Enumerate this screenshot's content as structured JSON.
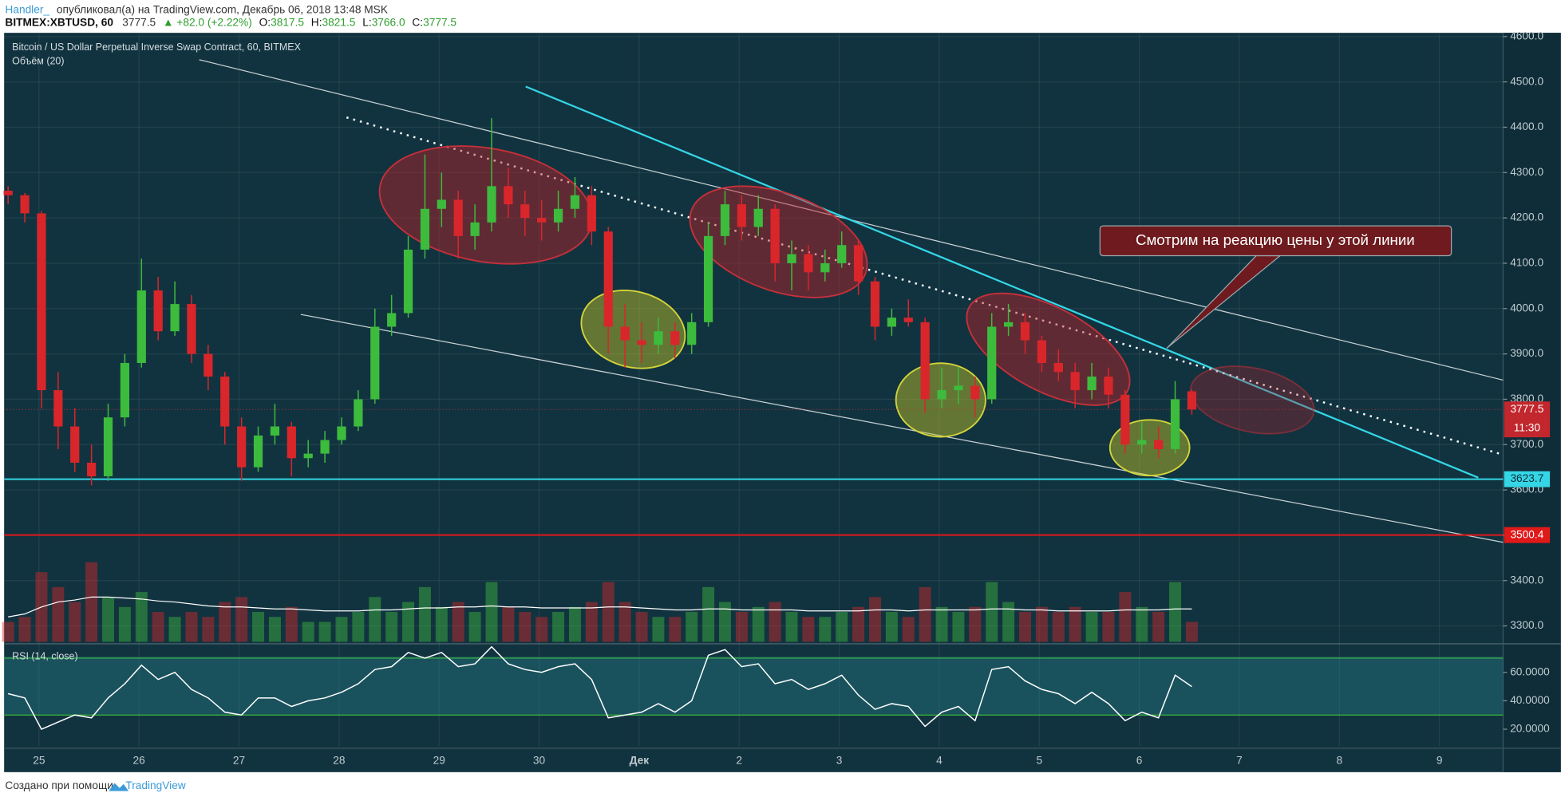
{
  "header": {
    "author": "Handler_",
    "published": "опубликовал(а) на TradingView.com, Декабрь 06, 2018 13:48 MSK",
    "symbol": "BITMEX:XBTUSD, 60",
    "last": "3777.5",
    "change": "▲ +82.0 (+2.22%)",
    "open_key": "O:",
    "open": "3817.5",
    "high_key": "H:",
    "high": "3821.5",
    "low_key": "L:",
    "low": "3766.0",
    "close_key": "C:",
    "close": "3777.5"
  },
  "footer": {
    "made_with": "Создано при помощи",
    "brand": "TradingView"
  },
  "chart_data": [
    {
      "type": "candlestick",
      "title": "Bitcoin / US Dollar Perpetual Inverse Swap Contract, 60, BITMEX",
      "subtitle": "Объём (20)",
      "up_color": "#3dbb3d",
      "down_color": "#d8262b",
      "x_labels": [
        "25",
        "26",
        "27",
        "28",
        "29",
        "30",
        "Дек",
        "2",
        "3",
        "4",
        "5",
        "6",
        "7",
        "8",
        "9"
      ],
      "ylim": [
        3265,
        4606
      ],
      "yticks": [
        {
          "value": 3300,
          "label": "3300.0"
        },
        {
          "value": 3400,
          "label": "3400.0"
        },
        {
          "value": 3500,
          "label": "3500.0"
        },
        {
          "value": 3600,
          "label": "3600.0"
        },
        {
          "value": 3700,
          "label": "3700.0"
        },
        {
          "value": 3800,
          "label": "3800.0"
        },
        {
          "value": 3900,
          "label": "3900.0"
        },
        {
          "value": 4000,
          "label": "4000.0"
        },
        {
          "value": 4100,
          "label": "4100.0"
        },
        {
          "value": 4200,
          "label": "4200.0"
        },
        {
          "value": 4300,
          "label": "4300.0"
        },
        {
          "value": 4400,
          "label": "4400.0"
        },
        {
          "value": 4500,
          "label": "4500.0"
        },
        {
          "value": 4600,
          "label": "4600.0"
        }
      ],
      "grid": true,
      "ohlc": [
        [
          4260,
          4270,
          4230,
          4250
        ],
        [
          4250,
          4255,
          4190,
          4210
        ],
        [
          4210,
          4215,
          3780,
          3820
        ],
        [
          3820,
          3860,
          3690,
          3740
        ],
        [
          3740,
          3780,
          3640,
          3660
        ],
        [
          3660,
          3700,
          3610,
          3630
        ],
        [
          3630,
          3790,
          3620,
          3760
        ],
        [
          3760,
          3900,
          3740,
          3880
        ],
        [
          3880,
          4110,
          3870,
          4040
        ],
        [
          4040,
          4070,
          3930,
          3950
        ],
        [
          3950,
          4060,
          3940,
          4010
        ],
        [
          4010,
          4030,
          3880,
          3900
        ],
        [
          3900,
          3920,
          3820,
          3850
        ],
        [
          3850,
          3860,
          3700,
          3740
        ],
        [
          3740,
          3760,
          3620,
          3650
        ],
        [
          3650,
          3740,
          3640,
          3720
        ],
        [
          3720,
          3790,
          3700,
          3740
        ],
        [
          3740,
          3750,
          3630,
          3670
        ],
        [
          3670,
          3710,
          3650,
          3680
        ],
        [
          3680,
          3730,
          3660,
          3710
        ],
        [
          3710,
          3760,
          3700,
          3740
        ],
        [
          3740,
          3820,
          3730,
          3800
        ],
        [
          3800,
          4000,
          3790,
          3960
        ],
        [
          3960,
          4030,
          3940,
          3990
        ],
        [
          3990,
          4160,
          3980,
          4130
        ],
        [
          4130,
          4340,
          4110,
          4220
        ],
        [
          4220,
          4300,
          4180,
          4240
        ],
        [
          4240,
          4260,
          4110,
          4160
        ],
        [
          4160,
          4230,
          4130,
          4190
        ],
        [
          4190,
          4420,
          4170,
          4270
        ],
        [
          4270,
          4310,
          4200,
          4230
        ],
        [
          4230,
          4260,
          4160,
          4200
        ],
        [
          4200,
          4240,
          4150,
          4190
        ],
        [
          4190,
          4260,
          4170,
          4220
        ],
        [
          4220,
          4290,
          4200,
          4250
        ],
        [
          4250,
          4270,
          4140,
          4170
        ],
        [
          4170,
          4180,
          3900,
          3960
        ],
        [
          3960,
          4010,
          3870,
          3930
        ],
        [
          3930,
          3970,
          3880,
          3920
        ],
        [
          3920,
          3980,
          3900,
          3950
        ],
        [
          3950,
          3970,
          3890,
          3920
        ],
        [
          3920,
          3990,
          3900,
          3970
        ],
        [
          3970,
          4190,
          3960,
          4160
        ],
        [
          4160,
          4260,
          4140,
          4230
        ],
        [
          4230,
          4250,
          4150,
          4180
        ],
        [
          4180,
          4250,
          4160,
          4220
        ],
        [
          4220,
          4230,
          4060,
          4100
        ],
        [
          4100,
          4150,
          4040,
          4120
        ],
        [
          4120,
          4140,
          4040,
          4080
        ],
        [
          4080,
          4130,
          4060,
          4100
        ],
        [
          4100,
          4170,
          4090,
          4140
        ],
        [
          4140,
          4150,
          4030,
          4060
        ],
        [
          4060,
          4070,
          3930,
          3960
        ],
        [
          3960,
          4000,
          3940,
          3980
        ],
        [
          3980,
          4020,
          3960,
          3970
        ],
        [
          3970,
          3980,
          3770,
          3800
        ],
        [
          3800,
          3870,
          3780,
          3820
        ],
        [
          3820,
          3870,
          3790,
          3830
        ],
        [
          3830,
          3850,
          3760,
          3800
        ],
        [
          3800,
          3990,
          3790,
          3960
        ],
        [
          3960,
          4010,
          3940,
          3970
        ],
        [
          3970,
          3990,
          3900,
          3930
        ],
        [
          3930,
          3940,
          3860,
          3880
        ],
        [
          3880,
          3910,
          3840,
          3860
        ],
        [
          3860,
          3880,
          3780,
          3820
        ],
        [
          3820,
          3880,
          3800,
          3850
        ],
        [
          3850,
          3870,
          3780,
          3810
        ],
        [
          3810,
          3820,
          3680,
          3700
        ],
        [
          3700,
          3750,
          3680,
          3710
        ],
        [
          3710,
          3740,
          3670,
          3690
        ],
        [
          3690,
          3840,
          3680,
          3800
        ],
        [
          3817.5,
          3821.5,
          3766,
          3777.5
        ]
      ],
      "volume": [
        20,
        25,
        70,
        55,
        40,
        80,
        45,
        35,
        50,
        30,
        25,
        30,
        25,
        40,
        45,
        30,
        25,
        35,
        20,
        20,
        25,
        30,
        45,
        30,
        40,
        55,
        35,
        40,
        30,
        60,
        35,
        30,
        25,
        30,
        35,
        40,
        60,
        40,
        30,
        25,
        25,
        30,
        55,
        40,
        30,
        35,
        40,
        30,
        25,
        25,
        30,
        35,
        45,
        30,
        25,
        55,
        35,
        30,
        35,
        60,
        40,
        30,
        35,
        30,
        35,
        30,
        30,
        50,
        35,
        30,
        60,
        20
      ],
      "volume_ma": [
        25,
        28,
        35,
        40,
        42,
        45,
        45,
        44,
        43,
        41,
        40,
        38,
        36,
        35,
        35,
        34,
        33,
        33,
        32,
        31,
        31,
        31,
        32,
        32,
        33,
        34,
        34,
        35,
        35,
        36,
        35,
        35,
        34,
        34,
        34,
        34,
        35,
        35,
        34,
        33,
        32,
        32,
        33,
        33,
        32,
        32,
        32,
        32,
        31,
        31,
        31,
        31,
        32,
        32,
        31,
        32,
        32,
        32,
        32,
        33,
        33,
        32,
        32,
        31,
        31,
        31,
        31,
        32,
        32,
        32,
        33,
        33
      ],
      "levels": [
        {
          "value": 3623.7,
          "label": "3623.7",
          "color": "#34d6e6"
        },
        {
          "value": 3500.4,
          "label": "3500.4",
          "color": "#e01919"
        }
      ],
      "last_price": {
        "value": 3777.5,
        "label": "3777.5",
        "timer": "11:30",
        "color": "#c1272d"
      },
      "annotation": "Смотрим на реакцию цены у этой линии"
    },
    {
      "type": "line",
      "title": "RSI (14, close)",
      "color": "#ffffff",
      "values": [
        45,
        42,
        20,
        25,
        30,
        28,
        42,
        52,
        65,
        55,
        60,
        48,
        42,
        32,
        30,
        42,
        42,
        36,
        40,
        42,
        46,
        52,
        62,
        64,
        74,
        70,
        74,
        64,
        66,
        78,
        66,
        62,
        60,
        64,
        66,
        55,
        28,
        30,
        32,
        38,
        32,
        40,
        72,
        76,
        64,
        66,
        52,
        55,
        48,
        52,
        58,
        44,
        34,
        38,
        36,
        22,
        32,
        36,
        26,
        62,
        64,
        54,
        48,
        45,
        38,
        46,
        38,
        26,
        32,
        28,
        58,
        50
      ],
      "ylim": [
        8,
        78
      ],
      "yticks": [
        {
          "value": 20,
          "label": "20.0000"
        },
        {
          "value": 40,
          "label": "40.0000"
        },
        {
          "value": 60,
          "label": "60.0000"
        }
      ],
      "levels": [
        30,
        70
      ]
    }
  ]
}
